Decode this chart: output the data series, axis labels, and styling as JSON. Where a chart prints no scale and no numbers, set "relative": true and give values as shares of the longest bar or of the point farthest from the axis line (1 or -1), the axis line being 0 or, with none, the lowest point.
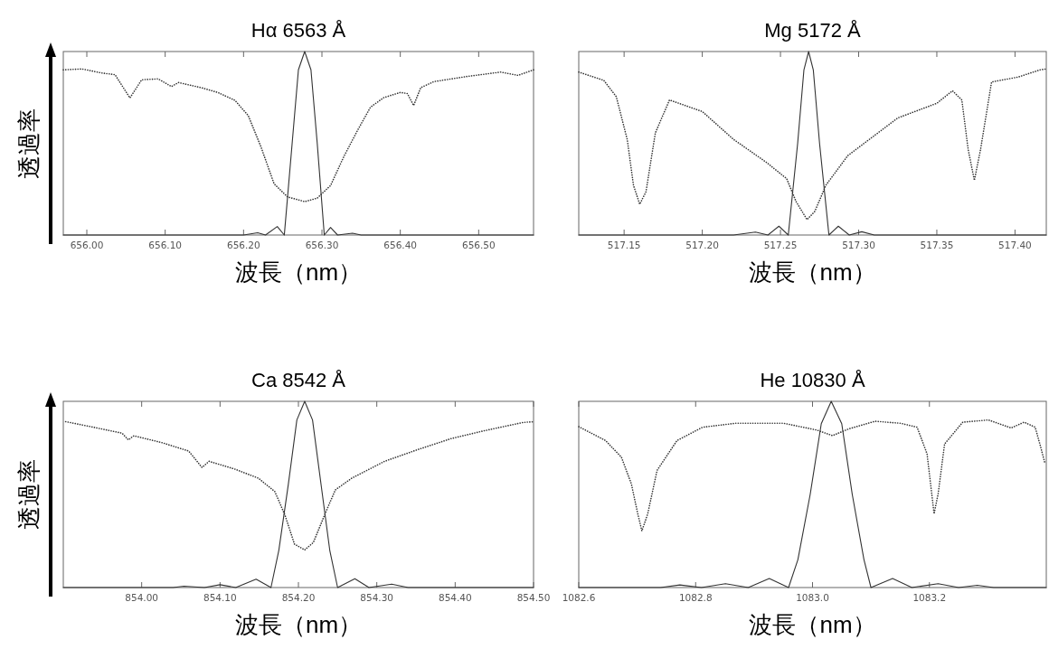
{
  "chart_data": [
    {
      "type": "line",
      "title": "Hα 6563 Å",
      "xlabel": "波長（nm）",
      "ylabel": "透過率",
      "relative": true,
      "xlim": [
        655.97,
        656.57
      ],
      "xticks": [
        {
          "value": 656.0,
          "label": "656.00"
        },
        {
          "value": 656.1,
          "label": "656.10"
        },
        {
          "value": 656.2,
          "label": "656.20"
        },
        {
          "value": 656.3,
          "label": "656.30"
        },
        {
          "value": 656.4,
          "label": "656.40"
        },
        {
          "value": 656.5,
          "label": "656.50"
        }
      ],
      "series": [
        {
          "color": "#333333",
          "line_style": "dotted",
          "x": [
            655.97,
            655.994,
            656.019,
            656.036,
            656.055,
            656.07,
            656.091,
            656.108,
            656.117,
            656.146,
            656.167,
            656.189,
            656.206,
            656.222,
            656.239,
            656.256,
            656.278,
            656.294,
            656.311,
            656.328,
            656.345,
            656.362,
            656.379,
            656.4,
            656.409,
            656.417,
            656.426,
            656.443,
            656.485,
            656.528,
            656.55,
            656.57
          ],
          "values": [
            0.9,
            0.905,
            0.883,
            0.874,
            0.747,
            0.846,
            0.851,
            0.809,
            0.831,
            0.803,
            0.777,
            0.734,
            0.651,
            0.483,
            0.279,
            0.208,
            0.182,
            0.201,
            0.27,
            0.428,
            0.567,
            0.697,
            0.749,
            0.777,
            0.771,
            0.706,
            0.803,
            0.836,
            0.864,
            0.888,
            0.87,
            0.9
          ]
        },
        {
          "color": "#333333",
          "line_style": "solid",
          "x": [
            655.97,
            656.2,
            656.218,
            656.228,
            656.243,
            656.252,
            656.262,
            656.27,
            656.278,
            656.286,
            656.294,
            656.303,
            656.311,
            656.32,
            656.339,
            656.35,
            656.57
          ],
          "values": [
            0,
            0,
            0.012,
            0,
            0.046,
            0,
            0.5,
            0.9,
            1,
            0.9,
            0.5,
            0,
            0.041,
            0,
            0.01,
            0,
            0
          ]
        }
      ]
    },
    {
      "type": "line",
      "title": "Mg 5172 Å",
      "xlabel": "波長（nm）",
      "relative": true,
      "xlim": [
        517.121,
        517.42
      ],
      "xticks": [
        {
          "value": 517.15,
          "label": "517.15"
        },
        {
          "value": 517.2,
          "label": "517.20"
        },
        {
          "value": 517.25,
          "label": "517.25"
        },
        {
          "value": 517.3,
          "label": "517.30"
        },
        {
          "value": 517.35,
          "label": "517.35"
        },
        {
          "value": 517.4,
          "label": "517.40"
        }
      ],
      "series": [
        {
          "color": "#333333",
          "line_style": "dotted",
          "x": [
            517.121,
            517.137,
            517.145,
            517.152,
            517.156,
            517.16,
            517.164,
            517.17,
            517.179,
            517.2,
            517.22,
            517.241,
            517.254,
            517.26,
            517.267,
            517.272,
            517.279,
            517.293,
            517.325,
            517.35,
            517.36,
            517.366,
            517.37,
            517.374,
            517.378,
            517.385,
            517.402,
            517.416,
            517.42
          ],
          "values": [
            0.888,
            0.843,
            0.754,
            0.521,
            0.271,
            0.168,
            0.236,
            0.557,
            0.736,
            0.673,
            0.521,
            0.396,
            0.307,
            0.182,
            0.084,
            0.129,
            0.271,
            0.432,
            0.638,
            0.718,
            0.786,
            0.736,
            0.468,
            0.298,
            0.468,
            0.834,
            0.861,
            0.9,
            0.905
          ]
        },
        {
          "color": "#333333",
          "line_style": "solid",
          "x": [
            517.121,
            517.22,
            517.234,
            517.242,
            517.249,
            517.255,
            517.261,
            517.265,
            517.268,
            517.271,
            517.275,
            517.281,
            517.287,
            517.294,
            517.302,
            517.31,
            517.42
          ],
          "values": [
            0,
            0,
            0.016,
            0,
            0.048,
            0,
            0.5,
            0.9,
            1,
            0.9,
            0.5,
            0,
            0.048,
            0,
            0.018,
            0,
            0
          ]
        }
      ]
    },
    {
      "type": "line",
      "title": "Ca 8542 Å",
      "xlabel": "波長（nm）",
      "ylabel": "透過率",
      "relative": true,
      "xlim": [
        853.9,
        854.5
      ],
      "xticks": [
        {
          "value": 854.0,
          "label": "854.00"
        },
        {
          "value": 854.1,
          "label": "854.10"
        },
        {
          "value": 854.2,
          "label": "854.20"
        },
        {
          "value": 854.3,
          "label": "854.30"
        },
        {
          "value": 854.4,
          "label": "854.40"
        },
        {
          "value": 854.5,
          "label": "854.50"
        }
      ],
      "series": [
        {
          "color": "#333333",
          "line_style": "dotted",
          "x": [
            853.903,
            853.935,
            853.975,
            853.983,
            853.99,
            854.026,
            854.06,
            854.077,
            854.086,
            854.119,
            854.149,
            854.17,
            854.183,
            854.195,
            854.208,
            854.219,
            854.234,
            854.247,
            854.268,
            854.31,
            854.353,
            854.395,
            854.437,
            854.487,
            854.5
          ],
          "values": [
            0.891,
            0.864,
            0.829,
            0.793,
            0.815,
            0.778,
            0.733,
            0.645,
            0.678,
            0.636,
            0.587,
            0.515,
            0.387,
            0.233,
            0.202,
            0.242,
            0.396,
            0.524,
            0.587,
            0.678,
            0.742,
            0.8,
            0.842,
            0.887,
            0.89
          ]
        },
        {
          "color": "#333333",
          "line_style": "solid",
          "x": [
            853.9,
            854.04,
            854.054,
            854.08,
            854.1,
            854.12,
            854.146,
            854.165,
            854.175,
            854.187,
            854.198,
            854.208,
            854.218,
            854.229,
            854.24,
            854.25,
            854.272,
            854.29,
            854.319,
            854.34,
            854.5
          ],
          "values": [
            0,
            0,
            0.007,
            0,
            0.015,
            0,
            0.045,
            0,
            0.2,
            0.55,
            0.9,
            1,
            0.9,
            0.55,
            0.2,
            0,
            0.047,
            0,
            0.018,
            0,
            0
          ]
        }
      ]
    },
    {
      "type": "line",
      "title": "He 10830 Å",
      "xlabel": "波長（nm）",
      "relative": true,
      "xlim": [
        1082.6,
        1083.4
      ],
      "xticks": [
        {
          "value": 1082.6,
          "label": "1082.6"
        },
        {
          "value": 1082.8,
          "label": "1082.8"
        },
        {
          "value": 1083.0,
          "label": "1083.0"
        },
        {
          "value": 1083.2,
          "label": "1083.2"
        }
      ],
      "series": [
        {
          "color": "#333333",
          "line_style": "dotted",
          "x": [
            1082.6,
            1082.646,
            1082.673,
            1082.69,
            1082.701,
            1082.708,
            1082.718,
            1082.734,
            1082.768,
            1082.812,
            1082.868,
            1082.951,
            1083.007,
            1083.034,
            1083.062,
            1083.107,
            1083.151,
            1083.179,
            1083.196,
            1083.204,
            1083.208,
            1083.215,
            1083.226,
            1083.257,
            1083.301,
            1083.34,
            1083.362,
            1083.381,
            1083.389,
            1083.398
          ],
          "values": [
            0.864,
            0.789,
            0.7,
            0.557,
            0.396,
            0.304,
            0.396,
            0.629,
            0.789,
            0.861,
            0.882,
            0.882,
            0.846,
            0.816,
            0.852,
            0.893,
            0.882,
            0.861,
            0.718,
            0.504,
            0.396,
            0.504,
            0.771,
            0.888,
            0.9,
            0.857,
            0.888,
            0.861,
            0.771,
            0.664
          ]
        },
        {
          "color": "#333333",
          "line_style": "solid",
          "x": [
            1082.6,
            1082.74,
            1082.773,
            1082.81,
            1082.851,
            1082.89,
            1082.926,
            1082.959,
            1082.975,
            1082.996,
            1083.015,
            1083.032,
            1083.05,
            1083.068,
            1083.088,
            1083.1,
            1083.137,
            1083.17,
            1083.215,
            1083.25,
            1083.282,
            1083.31,
            1083.4
          ],
          "values": [
            0,
            0,
            0.014,
            0,
            0.021,
            0,
            0.048,
            0,
            0.15,
            0.5,
            0.88,
            1,
            0.88,
            0.5,
            0.15,
            0,
            0.048,
            0,
            0.021,
            0,
            0.012,
            0,
            0
          ]
        }
      ]
    }
  ]
}
